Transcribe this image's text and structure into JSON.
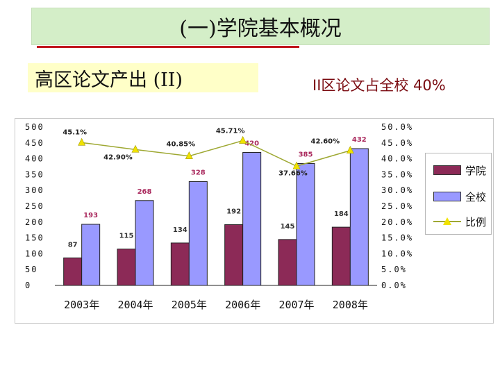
{
  "header": {
    "title": "(一)学院基本概况",
    "subtitle": "高区论文产出 (II)",
    "note": "II区论文占全校 40%"
  },
  "colors": {
    "college_bar": "#8c2a57",
    "school_bar": "#9999ff",
    "ratio_line": "#9ea832",
    "ratio_marker": "#f0e200"
  },
  "chart_data": {
    "type": "bar",
    "categories": [
      "2003年",
      "2004年",
      "2005年",
      "2006年",
      "2007年",
      "2008年"
    ],
    "series": [
      {
        "name": "学院",
        "type": "bar",
        "axis": "left",
        "values": [
          87,
          115,
          134,
          192,
          145,
          184
        ],
        "labels": [
          "87",
          "115",
          "134",
          "192",
          "145",
          "184"
        ]
      },
      {
        "name": "全校",
        "type": "bar",
        "axis": "left",
        "values": [
          193,
          268,
          328,
          420,
          385,
          432
        ],
        "labels": [
          "193",
          "268",
          "328",
          "420",
          "385",
          "432"
        ]
      },
      {
        "name": "比例",
        "type": "line",
        "axis": "right",
        "values": [
          45.1,
          42.9,
          40.85,
          45.71,
          37.66,
          42.6
        ],
        "labels": [
          "45.1%",
          "42.90%",
          "40.85%",
          "45.71%",
          "37.66%",
          "42.60%"
        ]
      }
    ],
    "ylim": [
      0,
      500
    ],
    "y2lim": [
      0,
      50
    ],
    "yticks": [
      "0",
      "50",
      "100",
      "150",
      "200",
      "250",
      "300",
      "350",
      "400",
      "450",
      "500"
    ],
    "y2ticks": [
      "0.0%",
      "5.0%",
      "10.0%",
      "15.0%",
      "20.0%",
      "25.0%",
      "30.0%",
      "35.0%",
      "40.0%",
      "45.0%",
      "50.0%"
    ],
    "grid": false,
    "legend_position": "right"
  }
}
